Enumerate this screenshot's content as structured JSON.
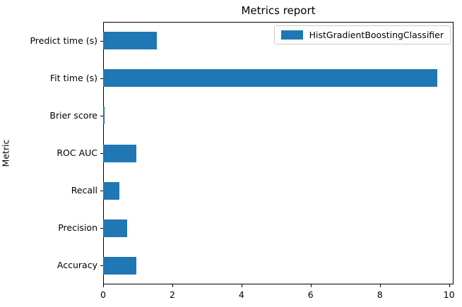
{
  "chart_data": {
    "type": "bar",
    "orientation": "horizontal",
    "title": "Metrics report",
    "xlabel": "",
    "ylabel": "Metric",
    "categories_top_to_bottom": [
      "Predict time (s)",
      "Fit time (s)",
      "Brier score",
      "ROC AUC",
      "Recall",
      "Precision",
      "Accuracy"
    ],
    "series": [
      {
        "name": "HistGradientBoostingClassifier",
        "color": "#1f77b4",
        "values_top_to_bottom": [
          1.55,
          9.66,
          0.04,
          0.96,
          0.46,
          0.69,
          0.95
        ]
      }
    ],
    "x_ticks": [
      0,
      2,
      4,
      6,
      8,
      10
    ],
    "xlim": [
      0,
      10.13
    ],
    "grid": false,
    "legend_position": "upper right",
    "colors": {
      "bar": "#1f77b4",
      "spine": "#000000",
      "legend_border": "#cccccc",
      "background": "#ffffff",
      "text": "#000000"
    }
  }
}
